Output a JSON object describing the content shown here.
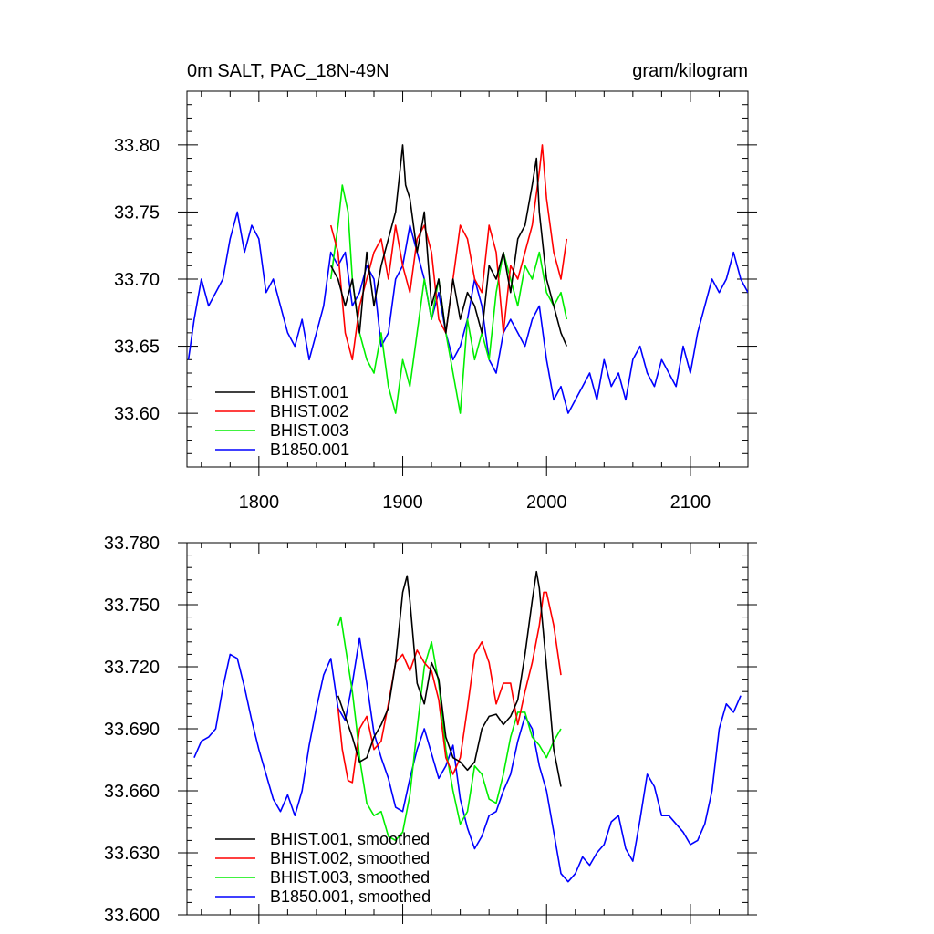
{
  "chart_data": [
    {
      "type": "line",
      "title": "0m SALT, PAC_18N-49N",
      "units": "gram/kilogram",
      "xlabel": "",
      "ylabel": "",
      "xlim": [
        1750,
        2140
      ],
      "ylim": [
        33.56,
        33.84
      ],
      "xticks": [
        1800,
        1900,
        2000,
        2100
      ],
      "xtick_labels": [
        "1800",
        "1900",
        "2000",
        "2100"
      ],
      "yticks": [
        33.6,
        33.65,
        33.7,
        33.75,
        33.8
      ],
      "ytick_labels": [
        "33.60",
        "33.65",
        "33.70",
        "33.75",
        "33.80"
      ],
      "legend_position": "bottom-left",
      "series": [
        {
          "name": "BHIST.001",
          "color": "#000000",
          "x": [
            1850,
            1855,
            1860,
            1865,
            1870,
            1875,
            1880,
            1885,
            1890,
            1895,
            1898,
            1900,
            1902,
            1905,
            1910,
            1915,
            1920,
            1925,
            1930,
            1935,
            1940,
            1945,
            1950,
            1955,
            1960,
            1965,
            1970,
            1975,
            1980,
            1985,
            1990,
            1993,
            1995,
            2000,
            2005,
            2010,
            2014
          ],
          "values": [
            33.71,
            33.7,
            33.68,
            33.7,
            33.66,
            33.72,
            33.68,
            33.71,
            33.73,
            33.75,
            33.78,
            33.8,
            33.77,
            33.76,
            33.72,
            33.75,
            33.68,
            33.7,
            33.66,
            33.7,
            33.67,
            33.69,
            33.68,
            33.66,
            33.71,
            33.7,
            33.72,
            33.69,
            33.73,
            33.74,
            33.77,
            33.79,
            33.75,
            33.7,
            33.68,
            33.66,
            33.65
          ]
        },
        {
          "name": "BHIST.002",
          "color": "#ff0000",
          "x": [
            1850,
            1855,
            1860,
            1865,
            1870,
            1875,
            1880,
            1885,
            1890,
            1895,
            1900,
            1905,
            1910,
            1915,
            1920,
            1925,
            1930,
            1935,
            1940,
            1945,
            1950,
            1955,
            1960,
            1965,
            1970,
            1975,
            1980,
            1985,
            1990,
            1995,
            1997,
            2000,
            2005,
            2010,
            2014
          ],
          "values": [
            33.74,
            33.72,
            33.66,
            33.64,
            33.68,
            33.7,
            33.72,
            33.73,
            33.7,
            33.74,
            33.71,
            33.69,
            33.73,
            33.74,
            33.72,
            33.67,
            33.66,
            33.7,
            33.74,
            33.73,
            33.7,
            33.69,
            33.74,
            33.72,
            33.66,
            33.71,
            33.7,
            33.72,
            33.74,
            33.78,
            33.8,
            33.76,
            33.72,
            33.7,
            33.73
          ]
        },
        {
          "name": "BHIST.003",
          "color": "#00ee00",
          "x": [
            1850,
            1855,
            1858,
            1862,
            1865,
            1870,
            1875,
            1880,
            1885,
            1890,
            1895,
            1900,
            1905,
            1910,
            1915,
            1920,
            1925,
            1930,
            1935,
            1940,
            1945,
            1950,
            1955,
            1960,
            1965,
            1970,
            1975,
            1980,
            1985,
            1990,
            1995,
            2000,
            2005,
            2010,
            2014
          ],
          "values": [
            33.7,
            33.74,
            33.77,
            33.75,
            33.7,
            33.66,
            33.64,
            33.63,
            33.66,
            33.62,
            33.6,
            33.64,
            33.62,
            33.66,
            33.7,
            33.67,
            33.7,
            33.66,
            33.63,
            33.6,
            33.67,
            33.64,
            33.66,
            33.64,
            33.69,
            33.72,
            33.7,
            33.68,
            33.71,
            33.7,
            33.72,
            33.69,
            33.68,
            33.69,
            33.67
          ]
        },
        {
          "name": "B1850.001",
          "color": "#0000ff",
          "x": [
            1751,
            1755,
            1760,
            1765,
            1770,
            1775,
            1780,
            1785,
            1790,
            1795,
            1800,
            1805,
            1810,
            1815,
            1820,
            1825,
            1830,
            1835,
            1840,
            1845,
            1850,
            1855,
            1860,
            1865,
            1870,
            1875,
            1880,
            1885,
            1890,
            1895,
            1900,
            1905,
            1910,
            1915,
            1920,
            1925,
            1930,
            1935,
            1940,
            1945,
            1950,
            1955,
            1960,
            1965,
            1970,
            1975,
            1980,
            1985,
            1990,
            1995,
            2000,
            2005,
            2010,
            2015,
            2020,
            2025,
            2030,
            2035,
            2040,
            2045,
            2050,
            2055,
            2060,
            2065,
            2070,
            2075,
            2080,
            2085,
            2090,
            2095,
            2100,
            2105,
            2110,
            2115,
            2120,
            2125,
            2130,
            2135,
            2140
          ],
          "values": [
            33.64,
            33.67,
            33.7,
            33.68,
            33.69,
            33.7,
            33.73,
            33.75,
            33.72,
            33.74,
            33.73,
            33.69,
            33.7,
            33.68,
            33.66,
            33.65,
            33.67,
            33.64,
            33.66,
            33.68,
            33.72,
            33.71,
            33.72,
            33.68,
            33.69,
            33.71,
            33.7,
            33.65,
            33.66,
            33.7,
            33.71,
            33.74,
            33.72,
            33.7,
            33.67,
            33.69,
            33.66,
            33.64,
            33.65,
            33.67,
            33.7,
            33.68,
            33.64,
            33.63,
            33.66,
            33.67,
            33.66,
            33.65,
            33.67,
            33.68,
            33.64,
            33.61,
            33.62,
            33.6,
            33.61,
            33.62,
            33.63,
            33.61,
            33.64,
            33.62,
            33.63,
            33.61,
            33.64,
            33.65,
            33.63,
            33.62,
            33.64,
            33.63,
            33.62,
            33.65,
            33.63,
            33.66,
            33.68,
            33.7,
            33.69,
            33.7,
            33.72,
            33.7,
            33.69
          ]
        }
      ]
    },
    {
      "type": "line",
      "title": "",
      "units": "",
      "xlabel": "",
      "ylabel": "",
      "xlim": [
        1750,
        2140
      ],
      "ylim": [
        33.6,
        33.78
      ],
      "xticks": [
        1800,
        1900,
        2000,
        2100
      ],
      "xtick_labels": [],
      "yticks": [
        33.6,
        33.63,
        33.66,
        33.69,
        33.72,
        33.75,
        33.78
      ],
      "ytick_labels": [
        "33.600",
        "33.630",
        "33.660",
        "33.690",
        "33.720",
        "33.750",
        "33.780"
      ],
      "legend_position": "bottom-left",
      "series": [
        {
          "name": "BHIST.001, smoothed",
          "color": "#000000",
          "x": [
            1855,
            1858,
            1862,
            1865,
            1870,
            1875,
            1880,
            1885,
            1890,
            1895,
            1900,
            1903,
            1905,
            1910,
            1915,
            1920,
            1925,
            1930,
            1935,
            1940,
            1945,
            1950,
            1955,
            1960,
            1965,
            1970,
            1975,
            1980,
            1985,
            1990,
            1993,
            1995,
            2000,
            2005,
            2010
          ],
          "values": [
            33.706,
            33.7,
            33.692,
            33.686,
            33.674,
            33.676,
            33.686,
            33.692,
            33.7,
            33.722,
            33.756,
            33.764,
            33.752,
            33.712,
            33.702,
            33.722,
            33.714,
            33.686,
            33.676,
            33.674,
            33.67,
            33.674,
            33.69,
            33.696,
            33.697,
            33.692,
            33.696,
            33.704,
            33.726,
            33.752,
            33.766,
            33.758,
            33.72,
            33.68,
            33.662
          ]
        },
        {
          "name": "BHIST.002, smoothed",
          "color": "#ff0000",
          "x": [
            1855,
            1858,
            1862,
            1865,
            1870,
            1875,
            1880,
            1885,
            1890,
            1895,
            1900,
            1905,
            1910,
            1915,
            1920,
            1925,
            1930,
            1935,
            1940,
            1945,
            1950,
            1955,
            1960,
            1965,
            1970,
            1975,
            1980,
            1985,
            1990,
            1995,
            1998,
            2000,
            2005,
            2010
          ],
          "values": [
            33.7,
            33.68,
            33.665,
            33.664,
            33.69,
            33.696,
            33.68,
            33.684,
            33.702,
            33.722,
            33.726,
            33.718,
            33.728,
            33.722,
            33.718,
            33.704,
            33.676,
            33.668,
            33.676,
            33.7,
            33.726,
            33.732,
            33.722,
            33.702,
            33.712,
            33.712,
            33.692,
            33.708,
            33.722,
            33.74,
            33.756,
            33.756,
            33.74,
            33.716
          ]
        },
        {
          "name": "BHIST.003, smoothed",
          "color": "#00ee00",
          "x": [
            1855,
            1857,
            1860,
            1865,
            1868,
            1870,
            1875,
            1880,
            1885,
            1890,
            1895,
            1900,
            1905,
            1910,
            1915,
            1920,
            1925,
            1930,
            1935,
            1940,
            1945,
            1950,
            1955,
            1960,
            1965,
            1970,
            1975,
            1980,
            1985,
            1990,
            1995,
            2000,
            2005,
            2010
          ],
          "values": [
            33.74,
            33.744,
            33.73,
            33.708,
            33.69,
            33.676,
            33.654,
            33.648,
            33.65,
            33.638,
            33.636,
            33.64,
            33.658,
            33.69,
            33.72,
            33.732,
            33.712,
            33.68,
            33.66,
            33.644,
            33.65,
            33.672,
            33.668,
            33.656,
            33.654,
            33.668,
            33.686,
            33.698,
            33.698,
            33.686,
            33.682,
            33.676,
            33.684,
            33.69
          ]
        },
        {
          "name": "B1850.001, smoothed",
          "color": "#0000ff",
          "x": [
            1755,
            1760,
            1765,
            1770,
            1775,
            1780,
            1785,
            1790,
            1795,
            1800,
            1805,
            1810,
            1815,
            1820,
            1825,
            1830,
            1835,
            1840,
            1845,
            1850,
            1855,
            1860,
            1865,
            1870,
            1875,
            1880,
            1885,
            1890,
            1895,
            1900,
            1905,
            1910,
            1915,
            1920,
            1925,
            1930,
            1935,
            1940,
            1945,
            1950,
            1955,
            1960,
            1965,
            1970,
            1975,
            1980,
            1985,
            1990,
            1995,
            2000,
            2005,
            2010,
            2015,
            2020,
            2025,
            2030,
            2035,
            2040,
            2045,
            2050,
            2055,
            2060,
            2065,
            2070,
            2075,
            2080,
            2085,
            2090,
            2095,
            2100,
            2105,
            2110,
            2115,
            2120,
            2125,
            2130,
            2135
          ],
          "values": [
            33.676,
            33.684,
            33.686,
            33.69,
            33.71,
            33.726,
            33.724,
            33.71,
            33.694,
            33.68,
            33.668,
            33.656,
            33.65,
            33.658,
            33.648,
            33.66,
            33.682,
            33.7,
            33.716,
            33.724,
            33.7,
            33.694,
            33.712,
            33.734,
            33.712,
            33.688,
            33.676,
            33.666,
            33.652,
            33.65,
            33.666,
            33.68,
            33.69,
            33.678,
            33.666,
            33.672,
            33.682,
            33.656,
            33.642,
            33.632,
            33.638,
            33.648,
            33.65,
            33.66,
            33.668,
            33.684,
            33.696,
            33.69,
            33.672,
            33.66,
            33.64,
            33.62,
            33.616,
            33.62,
            33.628,
            33.624,
            33.63,
            33.634,
            33.645,
            33.648,
            33.632,
            33.626,
            33.646,
            33.668,
            33.662,
            33.648,
            33.648,
            33.644,
            33.64,
            33.634,
            33.636,
            33.644,
            33.66,
            33.69,
            33.702,
            33.698,
            33.706
          ]
        }
      ]
    }
  ]
}
